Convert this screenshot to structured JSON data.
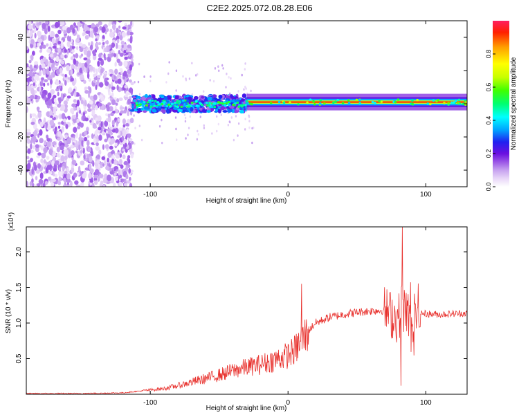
{
  "figure_title": "C2E2.2025.072.08.28.E06",
  "chart_data": [
    {
      "type": "heatmap",
      "title": "C2E2.2025.072.08.28.E06",
      "xlabel": "Height of straight line (km)",
      "ylabel": "Frequency (Hz)",
      "xlim": [
        -190,
        130
      ],
      "ylim": [
        -50,
        50
      ],
      "x_ticks": [
        -100,
        0,
        100
      ],
      "y_ticks": [
        -40,
        -20,
        0,
        20,
        40
      ],
      "colorbar": {
        "label": "Normalized spectral amplitude",
        "range": [
          0,
          1
        ],
        "ticks": [
          0.0,
          0.2,
          0.4,
          0.6,
          0.8
        ],
        "tick_labels": [
          "0.0",
          "0.2",
          "0.4",
          "0.6",
          "0.8"
        ],
        "colors": [
          "#ffffff",
          "#e8d6f8",
          "#c7a2f0",
          "#9a55e6",
          "#6a10e0",
          "#2020f0",
          "#00a0ff",
          "#00ffff",
          "#00ff70",
          "#40ff00",
          "#c8ff00",
          "#ffff00",
          "#ffa000",
          "#ff2000",
          "#ff2060"
        ]
      },
      "features": [
        {
          "x_range": [
            -190,
            -113
          ],
          "y_range": [
            -50,
            50
          ],
          "description": "broadband noise",
          "amplitude": 0.15
        },
        {
          "x_range": [
            -113,
            -30
          ],
          "y_center": 0,
          "width_hz": 8,
          "amplitude": 0.35
        },
        {
          "x_range": [
            -30,
            130
          ],
          "y_center": 0,
          "width_hz": 3,
          "amplitude": 0.95
        }
      ]
    },
    {
      "type": "line",
      "xlabel": "Height of straight line (km)",
      "ylabel": "SNR (10 * v/v)",
      "y_multiplier": "(x10⁴)",
      "xlim": [
        -190,
        130
      ],
      "ylim": [
        0,
        2.35
      ],
      "x_ticks": [
        -100,
        0,
        100
      ],
      "y_ticks": [
        0.5,
        1.0,
        1.5,
        2.0
      ],
      "y_tick_labels": [
        "0.5",
        "1.0",
        "1.5",
        "2.0"
      ],
      "color": "#e8302c",
      "series": [
        {
          "x": [
            -190,
            -150,
            -120,
            -105,
            -90,
            -80,
            -70,
            -60,
            -50,
            -40,
            -30,
            -20,
            -10,
            0,
            5,
            10,
            15,
            20,
            30,
            40,
            50,
            60,
            70,
            75,
            80,
            83,
            85,
            90,
            95,
            100,
            110,
            120,
            130
          ],
          "values": [
            0.01,
            0.01,
            0.02,
            0.05,
            0.08,
            0.12,
            0.17,
            0.22,
            0.27,
            0.33,
            0.38,
            0.42,
            0.48,
            0.55,
            0.62,
            0.75,
            0.9,
            1.0,
            1.08,
            1.12,
            1.15,
            1.17,
            1.18,
            1.12,
            1.05,
            1.3,
            1.12,
            1.16,
            1.14,
            1.13,
            1.12,
            1.13,
            1.14
          ]
        }
      ],
      "annotations": [
        {
          "x": 10,
          "y": 1.55,
          "description": "spike"
        },
        {
          "x": 83,
          "y": 2.35,
          "description": "peak"
        },
        {
          "x": 82,
          "y": 0.12,
          "description": "dip"
        }
      ]
    }
  ]
}
